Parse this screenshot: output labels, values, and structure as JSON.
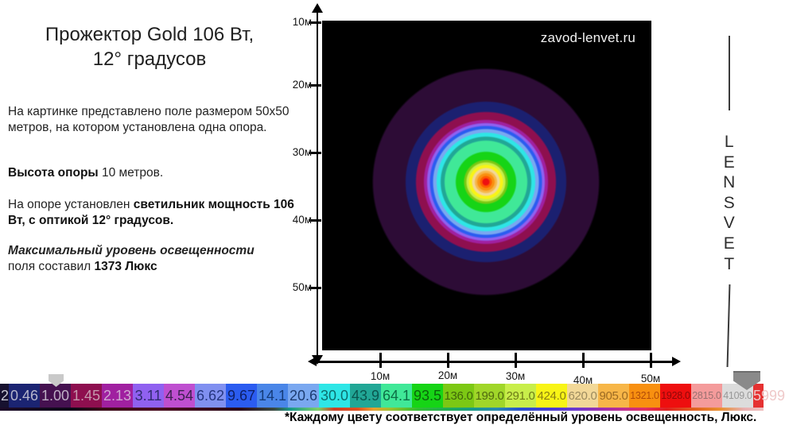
{
  "title": {
    "line1": "Прожектор Gold 106 Вт,",
    "line2": "12° градусов"
  },
  "paragraphs": {
    "p1": "На картинке представлено  поле размером 50х50 метров, на котором установлена  одна опора.",
    "p2_bold": "Высота опоры",
    "p2_rest": " 10 метров.",
    "p3_pre": "На  опоре установлен  ",
    "p3_bold": "светильник мощность 106 Вт, с оптикой 12° градусов.",
    "p4_italic": "Максимальный уровень освещенности",
    "p4_line2_pre": "поля   составил ",
    "p4_line2_bold": "1373 Люкс"
  },
  "watermark": "zavod-lenvet.ru",
  "brand": {
    "letters": [
      "L",
      "E",
      "N",
      "S",
      "V",
      "E",
      "T"
    ]
  },
  "axes": {
    "x_labels": [
      "10м",
      "20м",
      "30м",
      "40м",
      "50м"
    ],
    "y_labels": [
      "10м",
      "20м",
      "30м",
      "40м",
      "50м"
    ]
  },
  "colorbar": {
    "unit": "Люкс",
    "segments": [
      {
        "label": "2",
        "bg": "#17112f",
        "fg": "#c8c8d4"
      },
      {
        "label": "0.46",
        "bg": "#1b2472",
        "fg": "#b6b6cc"
      },
      {
        "label": "1.00",
        "bg": "#451150",
        "fg": "#bfb1c6"
      },
      {
        "label": "1.45",
        "bg": "#8e0f4f",
        "fg": "#c599ad"
      },
      {
        "label": "2.13",
        "bg": "#a020a0",
        "fg": "#cfa9d2"
      },
      {
        "label": "3.11",
        "bg": "#9061f0",
        "fg": "#2f2a70"
      },
      {
        "label": "4.54",
        "bg": "#bf4fd0",
        "fg": "#3c2050"
      },
      {
        "label": "6.62",
        "bg": "#8090f0",
        "fg": "#253680"
      },
      {
        "label": "9.67",
        "bg": "#2b5cf0",
        "fg": "#0e1f66"
      },
      {
        "label": "14.1",
        "bg": "#4a86e8",
        "fg": "#143a77"
      },
      {
        "label": "20.6",
        "bg": "#7aa8f0",
        "fg": "#1d3c71"
      },
      {
        "label": "30.0",
        "bg": "#2ee6e6",
        "fg": "#0c6d6d"
      },
      {
        "label": "43.9",
        "bg": "#21a796",
        "fg": "#0a564e"
      },
      {
        "label": "64.1",
        "bg": "#40e898",
        "fg": "#0c6e45"
      },
      {
        "label": "93.5",
        "bg": "#16d416",
        "fg": "#0a650a"
      },
      {
        "label": "136.0",
        "bg": "#7cc814",
        "fg": "#3f650a"
      },
      {
        "label": "199.0",
        "bg": "#a0d629",
        "fg": "#50690f"
      },
      {
        "label": "291.0",
        "bg": "#c8ee4a",
        "fg": "#6d7a17"
      },
      {
        "label": "424.0",
        "bg": "#f8f416",
        "fg": "#8a7f12"
      },
      {
        "label": "620.0",
        "bg": "#f2d898",
        "fg": "#9b8a5e"
      },
      {
        "label": "905.0",
        "bg": "#f7b648",
        "fg": "#9c6a23"
      },
      {
        "label": "1321.0",
        "bg": "#f89010",
        "fg": "#b04a08"
      },
      {
        "label": "1928.0",
        "bg": "#ee0f0f",
        "fg": "#8f0808"
      },
      {
        "label": "2815.0",
        "bg": "#f49b9b",
        "fg": "#9b7171"
      },
      {
        "label": "4109.0",
        "bg": "#dcdcdc",
        "fg": "#989898"
      },
      {
        "label": "5999",
        "bg": "#e53131",
        "fg": "#efc9c9"
      }
    ]
  },
  "caption": "*Каждому цвету  соответствует  определённый уровень освещенность, Люкс.",
  "chart_data": {
    "type": "heatmap",
    "title": "Прожектор Gold 106 Вт, 12° градусов",
    "field": "50x50 м",
    "pole_height_m": 10,
    "lamp": "106 Вт, оптика 12°",
    "max_illuminance_lux": 1373,
    "x_ticks": [
      "10м",
      "20м",
      "30м",
      "40м",
      "50м"
    ],
    "y_ticks": [
      "10м",
      "20м",
      "30м",
      "40м",
      "50м"
    ],
    "scale_values_lux": [
      "2",
      "0.46",
      "1.00",
      "1.45",
      "2.13",
      "3.11",
      "4.54",
      "6.62",
      "9.67",
      "14.1",
      "20.6",
      "30.0",
      "43.9",
      "64.1",
      "93.5",
      "136.0",
      "199.0",
      "291.0",
      "424.0",
      "620.0",
      "905.0",
      "1321.0",
      "1928.0",
      "2815.0",
      "4109.0",
      "5999"
    ],
    "rings_from_center": [
      {
        "color": "#ee1111",
        "outer_radius_px": 4.5
      },
      {
        "color": "#ff5c00",
        "outer_radius_px": 7.5
      },
      {
        "color": "#f89010",
        "outer_radius_px": 11
      },
      {
        "color": "#f7b648",
        "outer_radius_px": 14
      },
      {
        "color": "#f2d898",
        "outer_radius_px": 17.5
      },
      {
        "color": "#f8f416",
        "outer_radius_px": 21.5
      },
      {
        "color": "#c8ee4a",
        "outer_radius_px": 24.5
      },
      {
        "color": "#7cc814",
        "outer_radius_px": 27.5
      },
      {
        "color": "#16d416",
        "outer_radius_px": 38
      },
      {
        "color": "#40e898",
        "outer_radius_px": 52
      },
      {
        "color": "#21a796",
        "outer_radius_px": 57
      },
      {
        "color": "#2ee6e6",
        "outer_radius_px": 62
      },
      {
        "color": "#7aa8f0",
        "outer_radius_px": 66.5
      },
      {
        "color": "#2b5cf0",
        "outer_radius_px": 70.5
      },
      {
        "color": "#9061f0",
        "outer_radius_px": 74
      },
      {
        "color": "#a020a0",
        "outer_radius_px": 78
      },
      {
        "color": "#8e0f4f",
        "outer_radius_px": 88
      },
      {
        "color": "#1b2070",
        "outer_radius_px": 101
      },
      {
        "color": "#2d0c36",
        "outer_radius_px": 142
      }
    ],
    "background_color": "#000000",
    "legend_position": "bottom"
  }
}
